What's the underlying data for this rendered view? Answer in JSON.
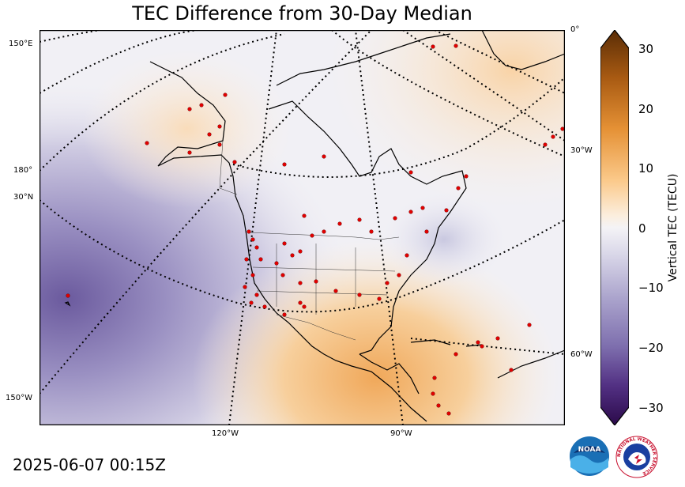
{
  "title": "TEC Difference from 30-Day Median",
  "timestamp": "2025-06-07 00:15Z",
  "map_grid_labels": {
    "left": [
      "150°E",
      "180°",
      "30°N",
      "150°W"
    ],
    "right": [
      "0°",
      "30°W",
      "60°W"
    ],
    "bottom": [
      "120°W",
      "90°W"
    ]
  },
  "colorbar": {
    "label": "Vertical TEC (TECU)",
    "ticks": [
      "30",
      "20",
      "10",
      "0",
      "−10",
      "−20",
      "−30"
    ],
    "range": [
      -30,
      30
    ],
    "extend": "both",
    "colormap": "purple-white-orange (PuOr reversed)",
    "colors": {
      "max": "#5a2d06",
      "high": "#d98a2a",
      "mid": "#f4f3f6",
      "low": "#8377b2",
      "min": "#2b0a4a"
    }
  },
  "logos": {
    "noaa": "NOAA",
    "nws": "NATIONAL WEATHER SERVICE"
  }
}
